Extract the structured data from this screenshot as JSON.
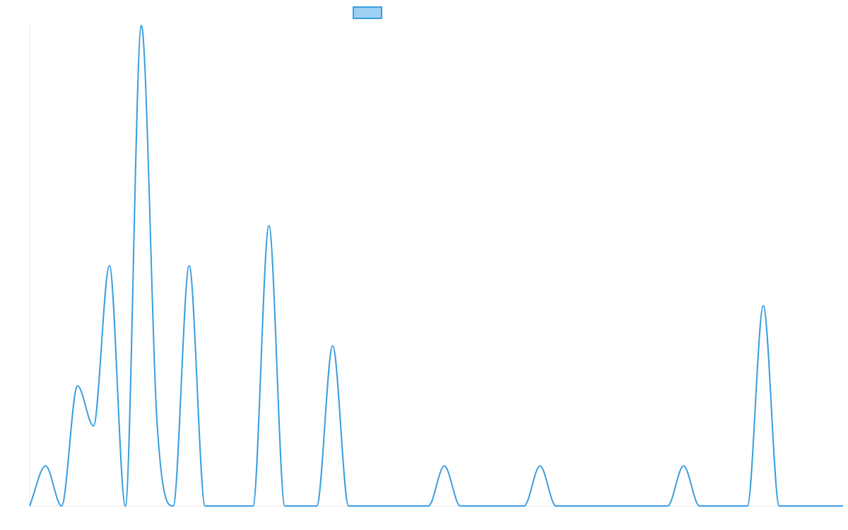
{
  "chart_data": {
    "type": "line",
    "title": "",
    "xlabel": "",
    "ylabel": "",
    "legend": {
      "position": "top-center",
      "label": ""
    },
    "grid": false,
    "x": [
      0,
      1,
      2,
      3,
      4,
      5,
      6,
      7,
      8,
      9,
      10,
      11,
      12,
      13,
      14,
      15,
      16,
      17,
      18,
      19,
      20,
      21,
      22,
      23,
      24,
      25,
      26,
      27,
      28,
      29,
      30,
      31,
      32,
      33,
      34,
      35,
      36,
      37,
      38,
      39,
      40,
      41,
      42,
      43,
      44,
      45,
      46,
      47,
      48,
      49,
      50,
      51
    ],
    "ylim": [
      0,
      12
    ],
    "series": [
      {
        "values": [
          0,
          1,
          0,
          3,
          2,
          6,
          0,
          12,
          2,
          0,
          6,
          0,
          0,
          0,
          0,
          7,
          0,
          0,
          0,
          4,
          0,
          0,
          0,
          0,
          0,
          0,
          1,
          0,
          0,
          0,
          0,
          0,
          1,
          0,
          0,
          0,
          0,
          0,
          0,
          0,
          0,
          1,
          0,
          0,
          0,
          0,
          5,
          0,
          0,
          0,
          0,
          0
        ]
      }
    ],
    "colors": {
      "line": "#3a9ee0",
      "legend_fill": "#9ed0f4",
      "legend_border": "#3a9ee0",
      "axis": "#e6e6e6"
    }
  }
}
